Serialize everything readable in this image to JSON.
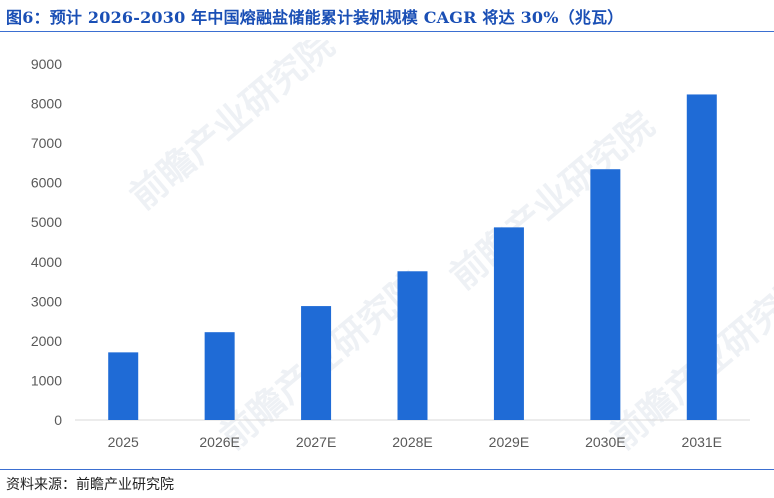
{
  "title": "图6：预计 2026-2030 年中国熔融盐储能累计装机规模 CAGR 将达 30%（兆瓦）",
  "source": "资料来源：前瞻产业研究院",
  "watermark": "前瞻产业研究院",
  "colors": {
    "bar": "#1f6bd6",
    "title": "#1a4fb5",
    "rule": "#3b6fd1",
    "axis": "#d9d9d9",
    "tick": "#595959"
  },
  "chart_data": {
    "type": "bar",
    "categories": [
      "2025",
      "2026E",
      "2027E",
      "2028E",
      "2029E",
      "2030E",
      "2031E"
    ],
    "values": [
      1710,
      2220,
      2880,
      3760,
      4870,
      6340,
      8230
    ],
    "title": "",
    "xlabel": "",
    "ylabel": "",
    "ylim": [
      0,
      9000
    ],
    "yticks": [
      0,
      1000,
      2000,
      3000,
      4000,
      5000,
      6000,
      7000,
      8000,
      9000
    ],
    "grid": false,
    "legend": "none"
  }
}
